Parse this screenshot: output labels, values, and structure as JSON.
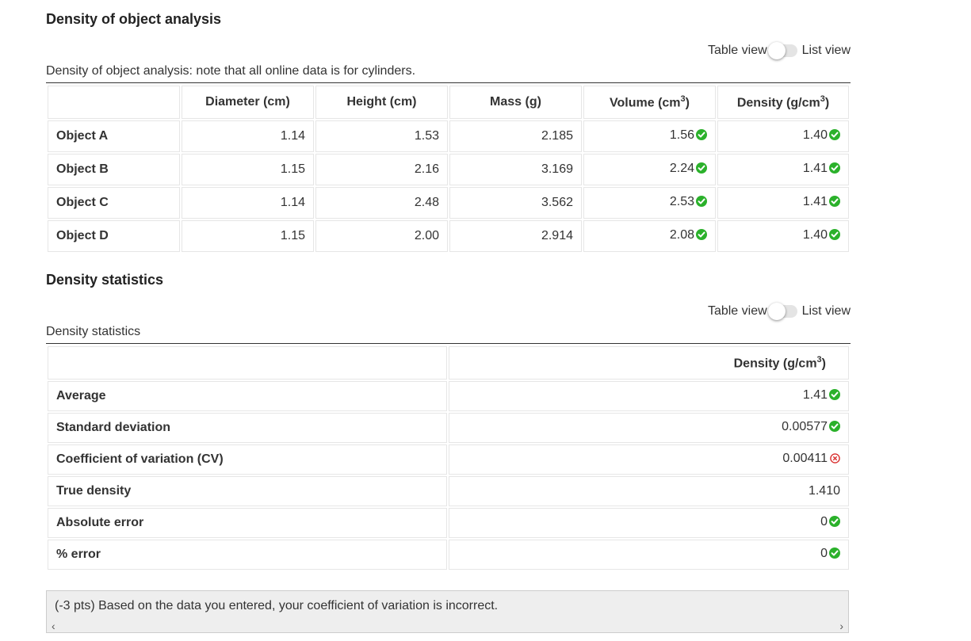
{
  "section1": {
    "title": "Density of object analysis",
    "toggle": {
      "left_label": "Table view",
      "right_label": "List view"
    },
    "caption": "Density of object analysis: note that all online data is for cylinders.",
    "columns": {
      "diameter": "Diameter (cm)",
      "height": "Height (cm)",
      "mass": "Mass (g)",
      "volume": "Volume (cm",
      "volume_exp": "3",
      "volume_close": ")",
      "density": "Density (g/cm",
      "density_exp": "3",
      "density_close": ")"
    },
    "rows": [
      {
        "label": "Object A",
        "diameter": "1.14",
        "height": "1.53",
        "mass": "2.185",
        "volume": "1.56",
        "density": "1.40"
      },
      {
        "label": "Object B",
        "diameter": "1.15",
        "height": "2.16",
        "mass": "3.169",
        "volume": "2.24",
        "density": "1.41"
      },
      {
        "label": "Object C",
        "diameter": "1.14",
        "height": "2.48",
        "mass": "3.562",
        "volume": "2.53",
        "density": "1.41"
      },
      {
        "label": "Object D",
        "diameter": "1.15",
        "height": "2.00",
        "mass": "2.914",
        "volume": "2.08",
        "density": "1.40"
      }
    ]
  },
  "section2": {
    "title": "Density statistics",
    "toggle": {
      "left_label": "Table view",
      "right_label": "List view"
    },
    "caption": "Density statistics",
    "column": {
      "density": "Density (g/cm",
      "density_exp": "3",
      "density_close": ")"
    },
    "rows": [
      {
        "label": "Average",
        "value": "1.41",
        "status": "correct"
      },
      {
        "label": "Standard deviation",
        "value": "0.00577",
        "status": "correct"
      },
      {
        "label": "Coefficient of variation (CV)",
        "value": "0.00411",
        "status": "incorrect"
      },
      {
        "label": "True density",
        "value": "1.410",
        "status": "none"
      },
      {
        "label": "Absolute error",
        "value": "0",
        "status": "correct"
      },
      {
        "label": "% error",
        "value": "0",
        "status": "correct"
      }
    ]
  },
  "feedback": {
    "text": "(-3 pts) Based on the data you entered, your coefficient of variation is incorrect."
  },
  "colors": {
    "correct": "#2bb12b",
    "incorrect": "#d9302f"
  },
  "icons": {
    "correct": "check-circle-icon",
    "incorrect": "x-circle-icon"
  }
}
